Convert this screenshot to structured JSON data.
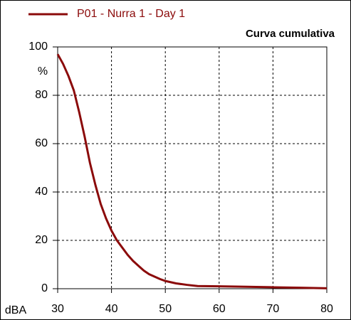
{
  "chart_data": {
    "type": "line",
    "title": "Curva cumulativa",
    "xlabel": "dBA",
    "ylabel": "%",
    "x": [
      30,
      31,
      32,
      33,
      34,
      35,
      36,
      37,
      38,
      39,
      40,
      41,
      42,
      43,
      44,
      45,
      46,
      47,
      48,
      49,
      50,
      52,
      54,
      56,
      60,
      65,
      70,
      75,
      80
    ],
    "series": [
      {
        "name": "P01 - Nurra 1 - Day 1",
        "color": "#8b0a0a",
        "values": [
          97,
          93,
          88,
          82,
          73,
          63,
          52,
          43,
          35,
          29,
          24,
          20,
          17,
          14,
          11.5,
          9.5,
          7.5,
          6,
          5,
          4,
          3.2,
          2.2,
          1.6,
          1.1,
          1.0,
          0.8,
          0.6,
          0.4,
          0.2
        ]
      }
    ],
    "xlim": [
      30,
      80
    ],
    "xticks": [
      30,
      40,
      50,
      60,
      70,
      80
    ],
    "ylim": [
      0,
      100
    ],
    "yticks": [
      0,
      20,
      40,
      60,
      80,
      100
    ],
    "grid": true,
    "legend": "top-left"
  }
}
